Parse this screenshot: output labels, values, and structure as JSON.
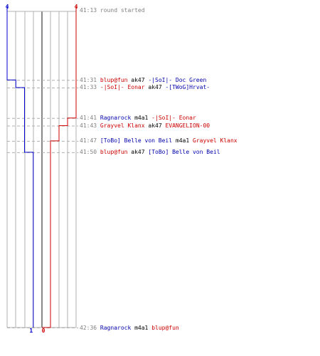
{
  "chart_data": {
    "type": "line",
    "title": "",
    "xlabel": "",
    "ylabel": "",
    "teams": [
      {
        "name": "blue",
        "color": "#0000cc",
        "start": 4,
        "end": 1
      },
      {
        "name": "red",
        "color": "#cc0000",
        "start": 4,
        "end": 0
      }
    ],
    "max_players": 4,
    "series": [
      {
        "team": "blue",
        "x": [
          "41:13",
          "41:31",
          "41:33",
          "41:50",
          "42:36"
        ],
        "alive": [
          4,
          3,
          2,
          1,
          1
        ]
      },
      {
        "team": "red",
        "x": [
          "41:13",
          "41:41",
          "41:43",
          "41:47",
          "42:36"
        ],
        "alive": [
          4,
          3,
          2,
          1,
          0
        ]
      }
    ],
    "events": [
      {
        "time": "41:13",
        "type": "start",
        "message": "round started"
      },
      {
        "time": "41:31",
        "killer": "blup@fun",
        "killer_team": "red",
        "weapon": "ak47",
        "victim": "-|SoI|- Doc Green",
        "victim_team": "blue"
      },
      {
        "time": "41:33",
        "killer": "-|SoI|- Eonar",
        "killer_team": "red",
        "weapon": "ak47",
        "victim": "-[TWoG]Hrvat-",
        "victim_team": "blue"
      },
      {
        "time": "41:41",
        "killer": "Ragnarock",
        "killer_team": "blue",
        "weapon": "m4a1",
        "victim": "-|SoI|- Eonar",
        "victim_team": "red"
      },
      {
        "time": "41:43",
        "killer": "Grayvel Klanx",
        "killer_team": "red",
        "weapon": "ak47",
        "victim": "EVANGELION-00",
        "victim_team": "red"
      },
      {
        "time": "41:47",
        "killer": "[ToBo] Belle von Beil",
        "killer_team": "blue",
        "weapon": "m4a1",
        "victim": "Grayvel Klanx",
        "victim_team": "red"
      },
      {
        "time": "41:50",
        "killer": "blup@fun",
        "killer_team": "red",
        "weapon": "ak47",
        "victim": "[ToBo] Belle von Beil",
        "victim_team": "blue"
      },
      {
        "time": "42:36",
        "killer": "Ragnarock",
        "killer_team": "blue",
        "weapon": "m4a1",
        "victim": "blup@fun",
        "victim_team": "red"
      }
    ]
  },
  "log": {
    "start": {
      "time": "41:13",
      "text": "round started"
    },
    "kills": [
      {
        "time": "41:31",
        "killer": "blup@fun",
        "weapon": "ak47",
        "victim": "-|SoI|- Doc Green"
      },
      {
        "time": "41:33",
        "killer": "-|SoI|- Eonar",
        "weapon": "ak47",
        "victim": "-[TWoG]Hrvat-"
      },
      {
        "time": "41:41",
        "killer": "Ragnarock",
        "weapon": "m4a1",
        "victim": "-|SoI|- Eonar"
      },
      {
        "time": "41:43",
        "killer": "Grayvel Klanx",
        "weapon": "ak47",
        "victim": "EVANGELION-00"
      },
      {
        "time": "41:47",
        "killer": "[ToBo] Belle von Beil",
        "weapon": "m4a1",
        "victim": "Grayvel Klanx"
      },
      {
        "time": "41:50",
        "killer": "blup@fun",
        "weapon": "ak47",
        "victim": "[ToBo] Belle von Beil"
      },
      {
        "time": "42:36",
        "killer": "Ragnarock",
        "weapon": "m4a1",
        "victim": "blup@fun"
      }
    ]
  },
  "labels": {
    "blue_start": "4",
    "red_start": "4",
    "blue_end": "1",
    "red_end": "0"
  },
  "colors": {
    "blue": "#0000cc",
    "red": "#cc0000",
    "grid": "#b0b0b0",
    "center": "#606060",
    "dash": "#b0b0b0",
    "time_text": "#808080"
  }
}
